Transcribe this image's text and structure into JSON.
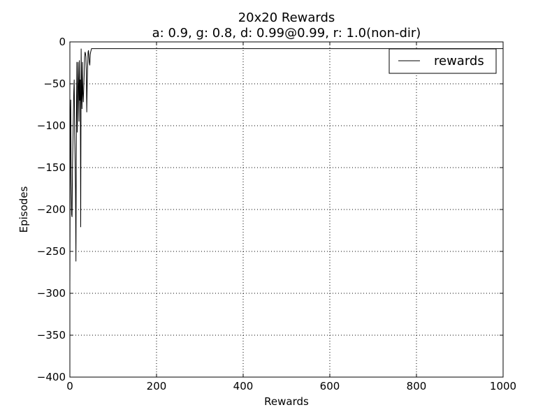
{
  "chart_data": {
    "type": "line",
    "title": "20x20 Rewards",
    "subtitle": "a: 0.9, g: 0.8, d: 0.99@0.99, r: 1.0(non-dir)",
    "xlabel": "Rewards",
    "ylabel": "Episodes",
    "xlim": [
      0,
      1000
    ],
    "ylim": [
      -400,
      0
    ],
    "xticks": [
      0,
      200,
      400,
      600,
      800,
      1000
    ],
    "yticks": [
      0,
      -50,
      -100,
      -150,
      -200,
      -250,
      -300,
      -350,
      -400
    ],
    "xtick_labels": [
      "0",
      "200",
      "400",
      "600",
      "800",
      "1000"
    ],
    "ytick_labels": [
      "0",
      "−50",
      "−100",
      "−150",
      "−200",
      "−250",
      "−300",
      "−350",
      "−400"
    ],
    "grid": true,
    "legend_position": "top-right",
    "series": [
      {
        "name": "rewards",
        "color": "#000000",
        "points": [
          [
            0,
            -290
          ],
          [
            1,
            -100
          ],
          [
            2,
            -69
          ],
          [
            3,
            -165
          ],
          [
            4,
            -206
          ],
          [
            5,
            -209
          ],
          [
            6,
            -150
          ],
          [
            7,
            -120
          ],
          [
            8,
            -88
          ],
          [
            9,
            -60
          ],
          [
            10,
            -45
          ],
          [
            11,
            -110
          ],
          [
            12,
            -140
          ],
          [
            13,
            -175
          ],
          [
            14,
            -262
          ],
          [
            15,
            -95
          ],
          [
            16,
            -24
          ],
          [
            17,
            -108
          ],
          [
            18,
            -70
          ],
          [
            19,
            -24
          ],
          [
            20,
            -55
          ],
          [
            21,
            -95
          ],
          [
            22,
            -22
          ],
          [
            23,
            -70
          ],
          [
            24,
            -45
          ],
          [
            25,
            -221
          ],
          [
            26,
            -8
          ],
          [
            27,
            -60
          ],
          [
            28,
            -80
          ],
          [
            29,
            -24
          ],
          [
            30,
            -62
          ],
          [
            31,
            -72
          ],
          [
            32,
            -55
          ],
          [
            33,
            -40
          ],
          [
            34,
            -18
          ],
          [
            35,
            -12
          ],
          [
            36,
            -14
          ],
          [
            37,
            -18
          ],
          [
            38,
            -35
          ],
          [
            39,
            -84
          ],
          [
            40,
            -48
          ],
          [
            41,
            -30
          ],
          [
            42,
            -12
          ],
          [
            43,
            -10
          ],
          [
            44,
            -18
          ],
          [
            45,
            -25
          ],
          [
            46,
            -28
          ],
          [
            47,
            -15
          ],
          [
            48,
            -12
          ],
          [
            49,
            -10
          ],
          [
            50,
            -8
          ],
          [
            1000,
            -8
          ]
        ]
      }
    ]
  }
}
